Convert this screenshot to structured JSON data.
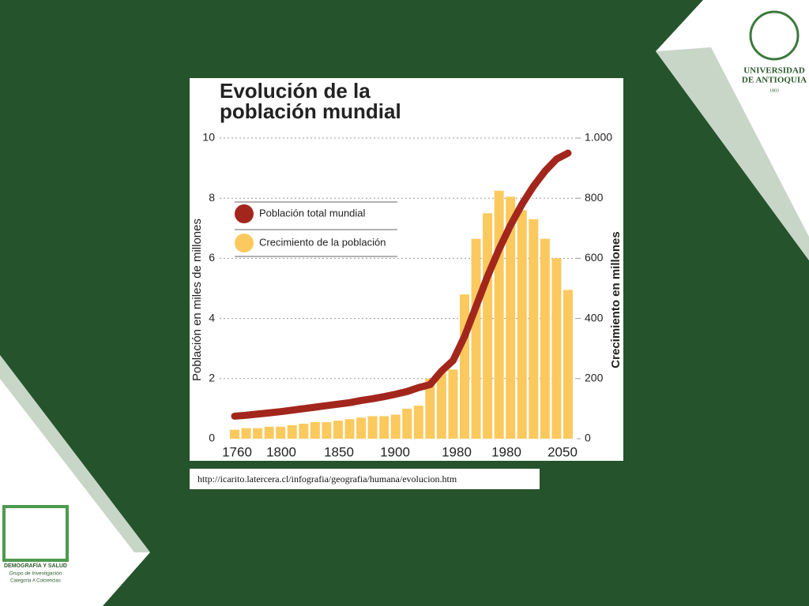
{
  "chart_data": {
    "type": "bar",
    "title": "Evolución de la población mundial",
    "ylabel": "Población en miles de millones",
    "y2label": "Crecimiento en millones",
    "xlabels": [
      "1760",
      "1800",
      "1850",
      "1900",
      "1980",
      "1980",
      "2050"
    ],
    "categories": [
      null,
      null,
      null,
      null,
      null,
      null,
      null,
      null,
      null,
      null,
      null,
      null,
      null,
      null,
      null,
      null,
      null,
      null,
      null,
      null,
      null,
      null,
      null,
      null,
      null,
      null,
      null,
      null,
      null,
      null
    ],
    "ylim": [
      0,
      10
    ],
    "yticks": [
      0,
      2,
      4,
      6,
      8,
      10
    ],
    "y2lim": [
      0,
      1000
    ],
    "y2ticks": [
      0,
      200,
      400,
      600,
      800,
      {
        "value": 1000,
        "label": "1.000"
      }
    ],
    "grid": true,
    "series": [
      {
        "name": "Población total mundial",
        "type": "line",
        "color": "#a3261c",
        "axis": "y",
        "values": [
          0.75,
          0.78,
          0.82,
          0.86,
          0.9,
          0.95,
          1.0,
          1.05,
          1.1,
          1.15,
          1.2,
          1.27,
          1.33,
          1.4,
          1.48,
          1.57,
          1.7,
          1.8,
          2.25,
          2.6,
          3.4,
          4.4,
          5.4,
          6.3,
          7.1,
          7.8,
          8.4,
          8.9,
          9.3,
          9.5
        ]
      },
      {
        "name": "Crecimiento de la población",
        "type": "bar",
        "color": "#fbc95e",
        "axis": "y2",
        "values": [
          30,
          35,
          35,
          40,
          40,
          45,
          50,
          55,
          55,
          60,
          65,
          70,
          75,
          75,
          80,
          100,
          110,
          200,
          220,
          230,
          480,
          665,
          750,
          825,
          805,
          760,
          730,
          665,
          600,
          495
        ]
      }
    ]
  },
  "source": "http://icarito.latercera.cl/infografia/geografia/humana/evolucion.htm",
  "logos": {
    "university": [
      "UNIVERSIDAD",
      "DE ANTIOQUIA",
      "1803"
    ],
    "group": [
      "DEMOGRAFÍA Y SALUD",
      "Grupo de Investigación",
      "Categoría A Colciencias"
    ]
  }
}
